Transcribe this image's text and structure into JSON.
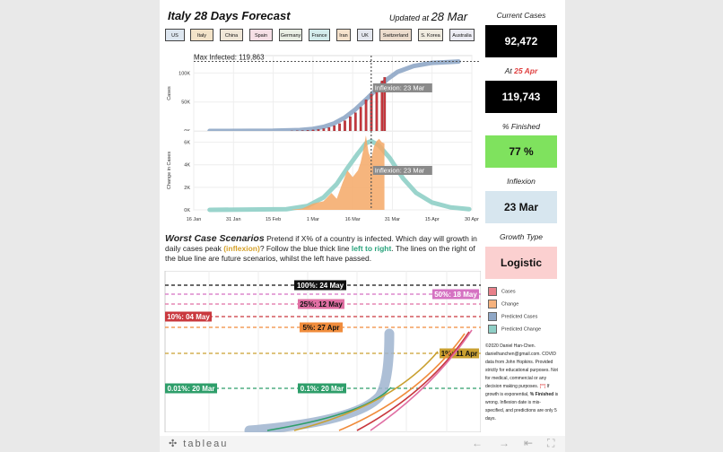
{
  "header": {
    "title": "Italy 28 Days Forecast",
    "updated_prefix": "Updated at",
    "updated_date": "28 Mar"
  },
  "countries": [
    "US",
    "Italy",
    "China",
    "Spain",
    "Germany",
    "France",
    "Iran",
    "UK",
    "Switzerland",
    "S. Korea",
    "Australia"
  ],
  "country_colors": [
    "#dde6f0",
    "#f3e3c8",
    "#f0e7d8",
    "#f6dfe6",
    "#e9efe4",
    "#d3ecec",
    "#f6e2cc",
    "#e4e7ef",
    "#ecdccd",
    "#f0ece0",
    "#ececf4"
  ],
  "chart_data": [
    {
      "type": "area",
      "name": "cumulative",
      "ylabel": "Cases",
      "ytick_labels": [
        "0K",
        "50K",
        "100K"
      ],
      "yticks": [
        0,
        50000,
        100000
      ],
      "ylim": [
        0,
        130000
      ],
      "x_ticks": [
        "16 Jan",
        "31 Jan",
        "15 Feb",
        "1 Mar",
        "16 Mar",
        "31 Mar",
        "15 Apr",
        "30 Apr"
      ],
      "x_start": "2020-01-16",
      "max_label": "Max Infected: 119,863",
      "max_value": 119863,
      "inflexion_label": "Inflexion: 23 Mar",
      "inflexion_date": "2020-03-23",
      "series": [
        {
          "name": "Cases",
          "color": "#c9383e",
          "x": [
            "2020-02-22",
            "2020-02-24",
            "2020-02-26",
            "2020-02-28",
            "2020-03-01",
            "2020-03-03",
            "2020-03-05",
            "2020-03-07",
            "2020-03-09",
            "2020-03-11",
            "2020-03-13",
            "2020-03-15",
            "2020-03-17",
            "2020-03-19",
            "2020-03-21",
            "2020-03-23",
            "2020-03-25",
            "2020-03-27",
            "2020-03-28"
          ],
          "y": [
            60,
            230,
            470,
            890,
            1700,
            2500,
            3900,
            5900,
            9200,
            12500,
            17700,
            24700,
            31500,
            41000,
            53600,
            63900,
            74400,
            86500,
            92472
          ]
        },
        {
          "name": "Predicted Cases",
          "color": "#8fa7c6",
          "x": [
            "2020-01-22",
            "2020-02-15",
            "2020-02-25",
            "2020-03-01",
            "2020-03-05",
            "2020-03-09",
            "2020-03-13",
            "2020-03-17",
            "2020-03-21",
            "2020-03-25",
            "2020-03-29",
            "2020-04-02",
            "2020-04-08",
            "2020-04-15",
            "2020-04-25"
          ],
          "y": [
            0,
            300,
            1500,
            3500,
            7000,
            13000,
            23000,
            37000,
            54000,
            72000,
            89000,
            102000,
            112000,
            117500,
            119800
          ]
        }
      ]
    },
    {
      "type": "area",
      "name": "daily",
      "ylabel": "Change in Cases",
      "ytick_labels": [
        "0K",
        "2K",
        "4K",
        "6K"
      ],
      "yticks": [
        0,
        2000,
        4000,
        6000
      ],
      "ylim": [
        0,
        7000
      ],
      "inflexion_label": "Inflexion: 23 Mar",
      "series": [
        {
          "name": "Change",
          "color": "#f4a866",
          "x": [
            "2020-02-22",
            "2020-02-26",
            "2020-03-01",
            "2020-03-05",
            "2020-03-08",
            "2020-03-10",
            "2020-03-12",
            "2020-03-14",
            "2020-03-16",
            "2020-03-17",
            "2020-03-18",
            "2020-03-19",
            "2020-03-20",
            "2020-03-21",
            "2020-03-22",
            "2020-03-23",
            "2020-03-24",
            "2020-03-25",
            "2020-03-26",
            "2020-03-27",
            "2020-03-28"
          ],
          "y": [
            20,
            120,
            560,
            770,
            1500,
            980,
            2300,
            3500,
            2900,
            3200,
            3500,
            4200,
            5300,
            6600,
            5100,
            4500,
            5600,
            6100,
            6300,
            6000,
            5900
          ]
        },
        {
          "name": "Predicted Change",
          "color": "#8fcfc6",
          "x": [
            "2020-01-22",
            "2020-02-20",
            "2020-02-28",
            "2020-03-05",
            "2020-03-10",
            "2020-03-14",
            "2020-03-18",
            "2020-03-21",
            "2020-03-23",
            "2020-03-26",
            "2020-03-30",
            "2020-04-04",
            "2020-04-09",
            "2020-04-15",
            "2020-04-22",
            "2020-04-29"
          ],
          "y": [
            0,
            60,
            350,
            1100,
            2300,
            3700,
            5000,
            5900,
            6100,
            5700,
            4600,
            2800,
            1500,
            650,
            220,
            60
          ]
        }
      ]
    }
  ],
  "worst_case": {
    "heading": "Worst Case Scenarios",
    "text_1": "Pretend if X% of a country is infected. Which day will growth in daily cases peak",
    "inflexion_word": "(inflexion)",
    "text_2": "? Follow the blue thick line",
    "left_to_right": "left to right",
    "text_3": ". The lines on the right of the blue line are future scenarios, whilst the left have passed.",
    "scenarios": [
      {
        "label": "100%: 24 May",
        "color": "#111111"
      },
      {
        "label": "50%: 18 May",
        "color": "#d572c2"
      },
      {
        "label": "25%: 12 May",
        "color": "#e06fa3"
      },
      {
        "label": "10%: 04 May",
        "color": "#c9383e"
      },
      {
        "label": "5%: 27 Apr",
        "color": "#f08c3c"
      },
      {
        "label": "1%: 11 Apr",
        "color": "#c9a030"
      },
      {
        "label": "0.01%: 20 Mar",
        "color": "#2e9e6a"
      },
      {
        "label": "0.1%: 20 Mar",
        "color": "#2e9e6a"
      }
    ]
  },
  "legend": [
    {
      "label": "Cases",
      "color": "#e8808a"
    },
    {
      "label": "Change",
      "color": "#f6b27d"
    },
    {
      "label": "Predicted Cases",
      "color": "#8fa7c6"
    },
    {
      "label": "Predicted Change",
      "color": "#8fcfc6"
    }
  ],
  "credits": {
    "line1": "©2020 Daniel Han-Chen. danielhanchen@gmail.com. COVID data from John Hopkins. Provided strictly for educational purposes. Not for medical, commercial or any decision making purposes.",
    "marker": "[**]",
    "line2": "If growth is exponential,",
    "bold": "% Finished",
    "line3": "is wrong. Inflexion date is mis-specified, and predictions are only 5 days."
  },
  "side": {
    "current_label": "Current Cases",
    "current_value": "92,472",
    "at_label": "At",
    "at_date": "25 Apr",
    "at_value": "119,743",
    "finished_label": "% Finished",
    "finished_value": "77 %",
    "inflexion_label": "Inflexion",
    "inflexion_value": "23 Mar",
    "growth_label": "Growth Type",
    "growth_value": "Logistic"
  },
  "toolbar": {
    "brand": "tableau",
    "icons": [
      "back-icon",
      "forward-icon",
      "reset-icon",
      "fullscreen-icon"
    ]
  }
}
